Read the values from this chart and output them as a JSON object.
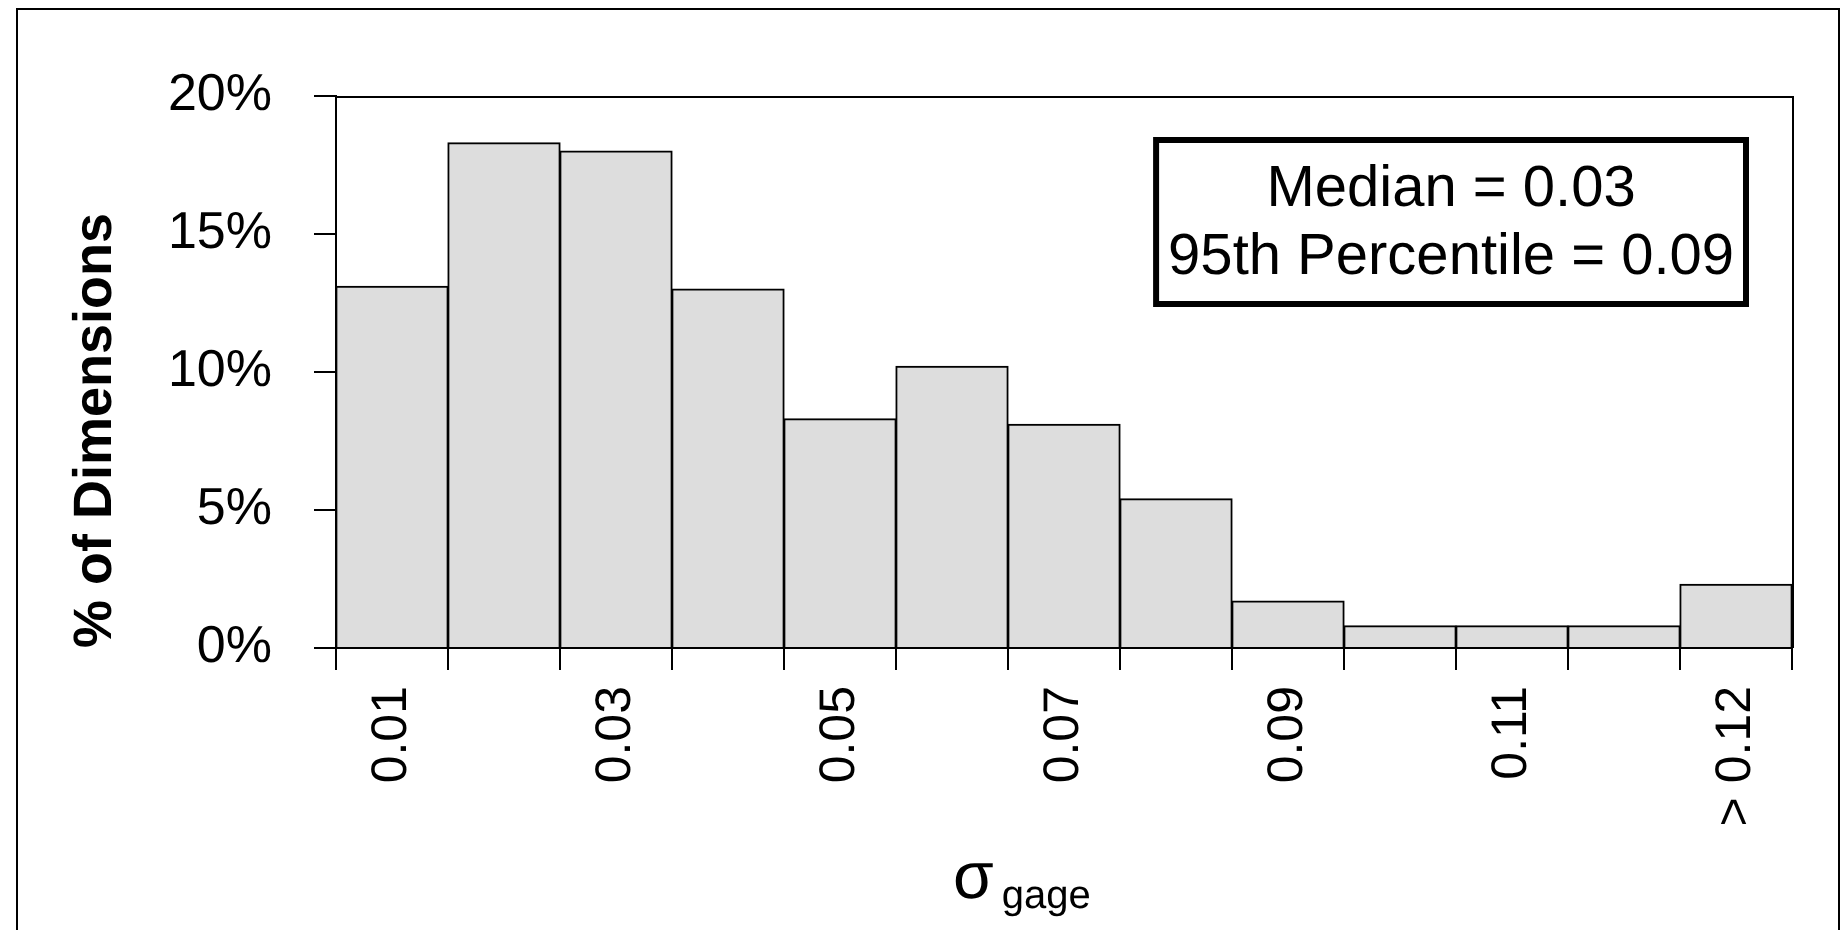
{
  "chart_data": {
    "type": "bar",
    "categories": [
      "0.01",
      null,
      "0.03",
      null,
      "0.05",
      null,
      "0.07",
      null,
      "0.09",
      null,
      "0.11",
      null,
      "> 0.12"
    ],
    "values": [
      13.1,
      18.3,
      18.0,
      13.0,
      8.3,
      10.2,
      8.1,
      5.4,
      1.7,
      0.8,
      0.8,
      0.8,
      2.3
    ],
    "color": "#dddddd",
    "ylim": [
      0,
      20
    ],
    "yticks": [
      {
        "value": 0,
        "label": "0%"
      },
      {
        "value": 5,
        "label": "5%"
      },
      {
        "value": 10,
        "label": "10%"
      },
      {
        "value": 15,
        "label": "15%"
      },
      {
        "value": 20,
        "label": "20%"
      }
    ],
    "xlabel": "σ$_{gage}$",
    "ylabel": "% of Dimensions",
    "annotations": [
      "Median = 0.03",
      "95th Percentile = 0.09"
    ]
  }
}
